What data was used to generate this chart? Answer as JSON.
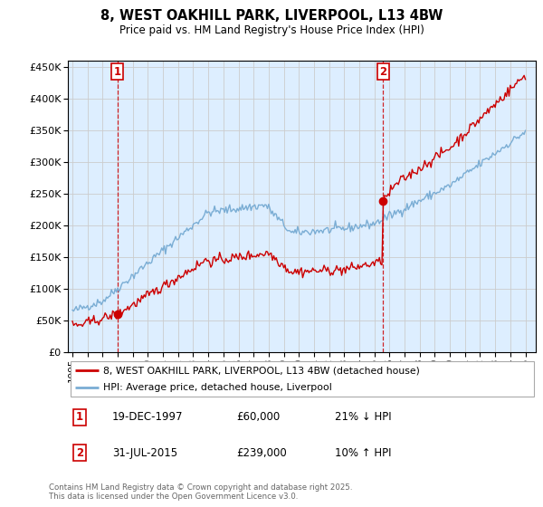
{
  "title": "8, WEST OAKHILL PARK, LIVERPOOL, L13 4BW",
  "subtitle": "Price paid vs. HM Land Registry's House Price Index (HPI)",
  "legend_label_red": "8, WEST OAKHILL PARK, LIVERPOOL, L13 4BW (detached house)",
  "legend_label_blue": "HPI: Average price, detached house, Liverpool",
  "annotation1_label": "1",
  "annotation1_date": "19-DEC-1997",
  "annotation1_price": "£60,000",
  "annotation1_hpi": "21% ↓ HPI",
  "annotation2_label": "2",
  "annotation2_date": "31-JUL-2015",
  "annotation2_price": "£239,000",
  "annotation2_hpi": "10% ↑ HPI",
  "footer": "Contains HM Land Registry data © Crown copyright and database right 2025.\nThis data is licensed under the Open Government Licence v3.0.",
  "ylim": [
    0,
    460000
  ],
  "yticks": [
    0,
    50000,
    100000,
    150000,
    200000,
    250000,
    300000,
    350000,
    400000,
    450000
  ],
  "xlim_start": 1994.7,
  "xlim_end": 2025.7,
  "red_color": "#cc0000",
  "blue_color": "#7aadd4",
  "dashed_color": "#cc0000",
  "annotation_box_color": "#cc0000",
  "grid_color": "#cccccc",
  "bg_color": "#ddeeff",
  "trans1_year": 1997.97,
  "trans1_price": 60000,
  "trans2_year": 2015.58,
  "trans2_price": 239000
}
